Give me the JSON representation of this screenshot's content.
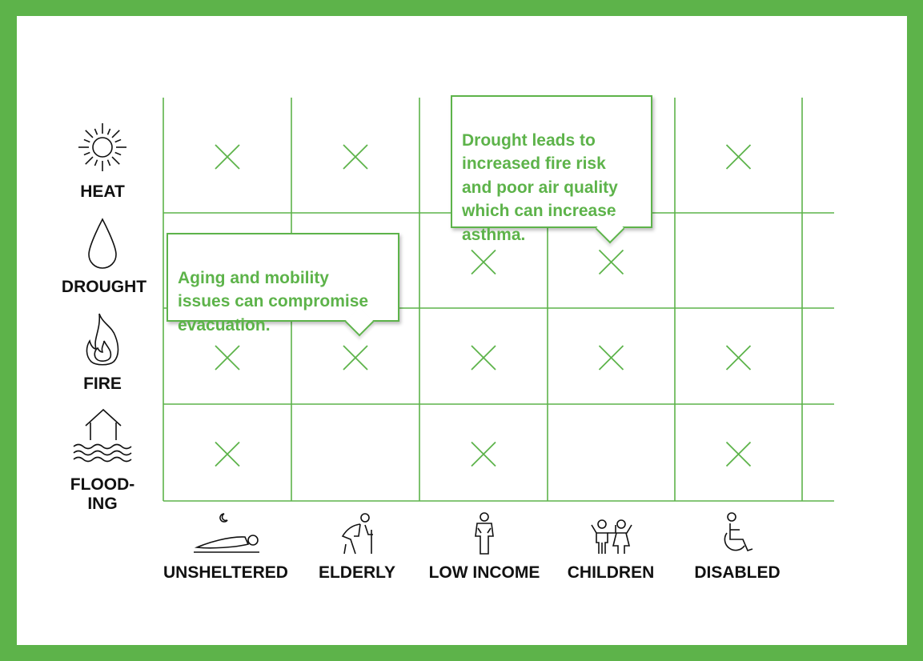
{
  "colors": {
    "frame": "#5db34a",
    "grid": "#5db34a",
    "mark": "#5db34a",
    "text": "#111111"
  },
  "rows": [
    {
      "id": "heat",
      "label": "HEAT",
      "icon": "sun-icon"
    },
    {
      "id": "drought",
      "label": "DROUGHT",
      "icon": "water-drop-icon"
    },
    {
      "id": "fire",
      "label": "FIRE",
      "icon": "flame-icon"
    },
    {
      "id": "flooding",
      "label": "FLOOD-\nING",
      "icon": "flooded-house-icon"
    }
  ],
  "columns": [
    {
      "id": "unsheltered",
      "label": "UNSHELTERED",
      "icon": "sleeping-person-icon"
    },
    {
      "id": "elderly",
      "label": "ELDERLY",
      "icon": "elderly-person-icon"
    },
    {
      "id": "low-income",
      "label": "LOW INCOME",
      "icon": "person-pockets-icon"
    },
    {
      "id": "children",
      "label": "CHILDREN",
      "icon": "children-icon"
    },
    {
      "id": "disabled",
      "label": "DISABLED",
      "icon": "wheelchair-icon"
    }
  ],
  "chart_data": {
    "type": "table",
    "rows": [
      "HEAT",
      "DROUGHT",
      "FIRE",
      "FLOOD-ING"
    ],
    "columns": [
      "UNSHELTERED",
      "ELDERLY",
      "LOW INCOME",
      "CHILDREN",
      "DISABLED"
    ],
    "matrix": [
      [
        true,
        true,
        false,
        false,
        true
      ],
      [
        false,
        false,
        true,
        true,
        false
      ],
      [
        true,
        true,
        true,
        true,
        true
      ],
      [
        true,
        false,
        true,
        false,
        true
      ]
    ]
  },
  "callouts": [
    {
      "id": "elderly",
      "text": "Aging and mobility\nissues can compromise\nevacuation."
    },
    {
      "id": "drought",
      "text": "Drought leads to\nincreased fire risk\nand poor air quality\nwhich can increase\nasthma."
    }
  ]
}
